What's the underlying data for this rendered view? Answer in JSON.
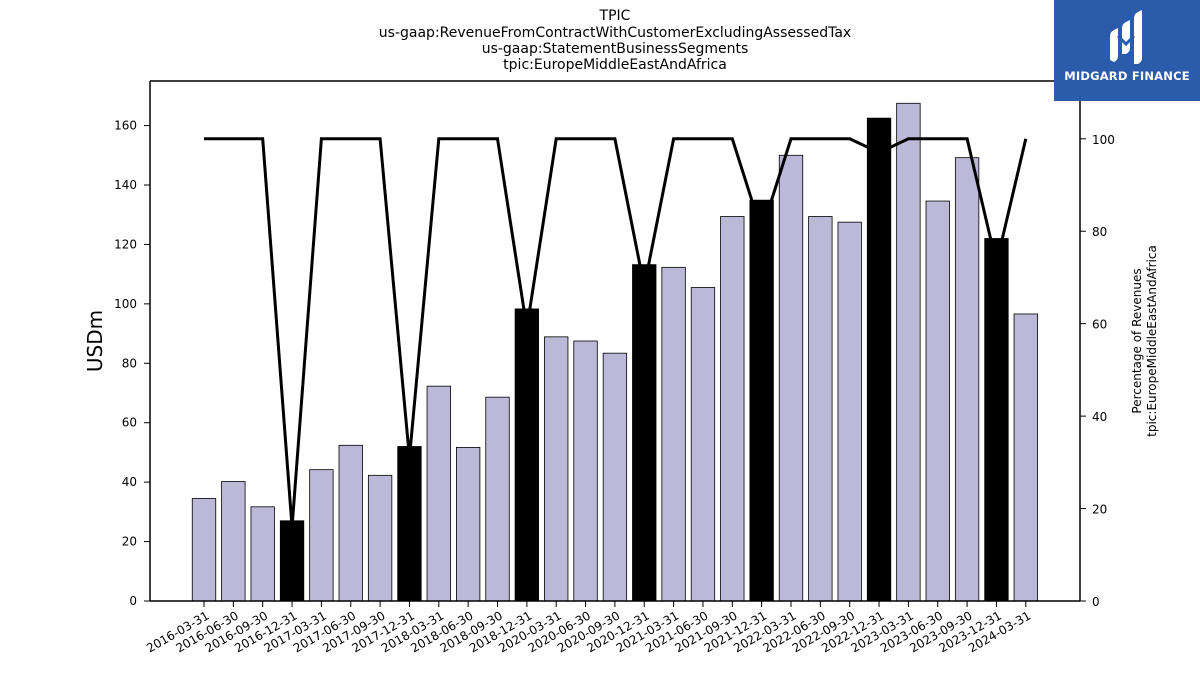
{
  "chart_data": {
    "type": "bar",
    "title_lines": [
      "TPIC",
      "us-gaap:RevenueFromContractWithCustomerExcludingAssessedTax",
      "us-gaap:StatementBusinessSegments",
      "tpic:EuropeMiddleEastAndAfrica"
    ],
    "ylabel": "USDm",
    "ylabel_right": [
      "Percentage of Revenues",
      "tpic:EuropeMiddleEastAndAfrica"
    ],
    "ylim": [
      0,
      175
    ],
    "ylim_right": [
      0,
      112.5
    ],
    "yticks": [
      0,
      20,
      40,
      60,
      80,
      100,
      120,
      140,
      160
    ],
    "yticks_right": [
      0,
      20,
      40,
      60,
      80,
      100
    ],
    "categories": [
      "2016-03-31",
      "2016-06-30",
      "2016-09-30",
      "2016-12-31",
      "2017-03-31",
      "2017-06-30",
      "2017-09-30",
      "2017-12-31",
      "2018-03-31",
      "2018-06-30",
      "2018-09-30",
      "2018-12-31",
      "2020-03-31",
      "2020-06-30",
      "2020-09-30",
      "2020-12-31",
      "2021-03-31",
      "2021-06-30",
      "2021-09-30",
      "2021-12-31",
      "2022-03-31",
      "2022-06-30",
      "2022-09-30",
      "2022-12-31",
      "2023-03-31",
      "2023-06-30",
      "2023-09-30",
      "2023-12-31",
      "2024-03-31"
    ],
    "values": [
      34.5,
      40.2,
      31.7,
      27.0,
      44.2,
      52.4,
      42.3,
      52.0,
      72.3,
      51.7,
      68.6,
      98.3,
      88.9,
      87.5,
      83.4,
      113.2,
      112.3,
      105.5,
      129.4,
      134.9,
      150.0,
      129.4,
      127.5,
      162.5,
      167.5,
      134.6,
      149.2,
      122.0,
      96.6
    ],
    "highlight": [
      false,
      false,
      false,
      true,
      false,
      false,
      false,
      true,
      false,
      false,
      false,
      true,
      false,
      false,
      false,
      true,
      false,
      false,
      false,
      true,
      false,
      false,
      false,
      true,
      false,
      false,
      false,
      true,
      false
    ],
    "line_values": [
      100,
      100,
      100,
      16,
      100,
      100,
      100,
      31,
      100,
      100,
      100,
      59,
      100,
      100,
      100,
      68,
      100,
      100,
      100,
      80,
      100,
      100,
      100,
      97,
      100,
      100,
      100,
      73,
      100
    ],
    "colors": {
      "bar": "#bcb8d8",
      "highlight_bar": "#000000",
      "line": "#000000",
      "edge": "#000000"
    },
    "grid": false
  },
  "logo": {
    "text": "MIDGARD FINANCE",
    "icon": "midgard-logo-icon"
  }
}
